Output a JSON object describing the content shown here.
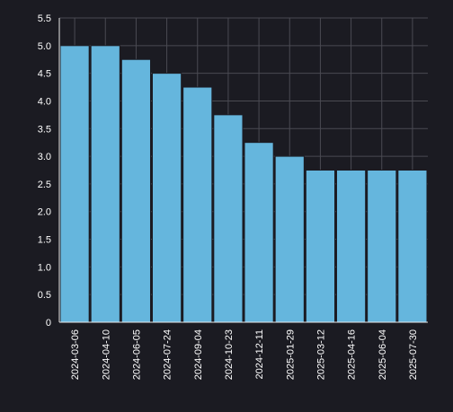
{
  "chart_data": {
    "type": "bar",
    "title": "",
    "xlabel": "",
    "ylabel": "",
    "categories": [
      "2024-03-06",
      "2024-04-10",
      "2024-06-05",
      "2024-07-24",
      "2024-09-04",
      "2024-10-23",
      "2024-12-11",
      "2025-01-29",
      "2025-03-12",
      "2025-04-16",
      "2025-06-04",
      "2025-07-30"
    ],
    "values": [
      5.0,
      5.0,
      4.75,
      4.5,
      4.25,
      3.75,
      3.25,
      3.0,
      2.75,
      2.75,
      2.75,
      2.75
    ],
    "ylim": [
      0,
      5.5
    ],
    "yticks": [
      "0",
      "0.5",
      "1.0",
      "1.5",
      "2.0",
      "2.5",
      "3.0",
      "3.5",
      "4.0",
      "4.5",
      "5.0",
      "5.5"
    ],
    "grid": true,
    "colors": {
      "bar": "#65b6dd",
      "background": "#1b1b22",
      "grid": "#4a4a52",
      "axis": "#e8e8e8",
      "text": "#ffffff"
    }
  }
}
